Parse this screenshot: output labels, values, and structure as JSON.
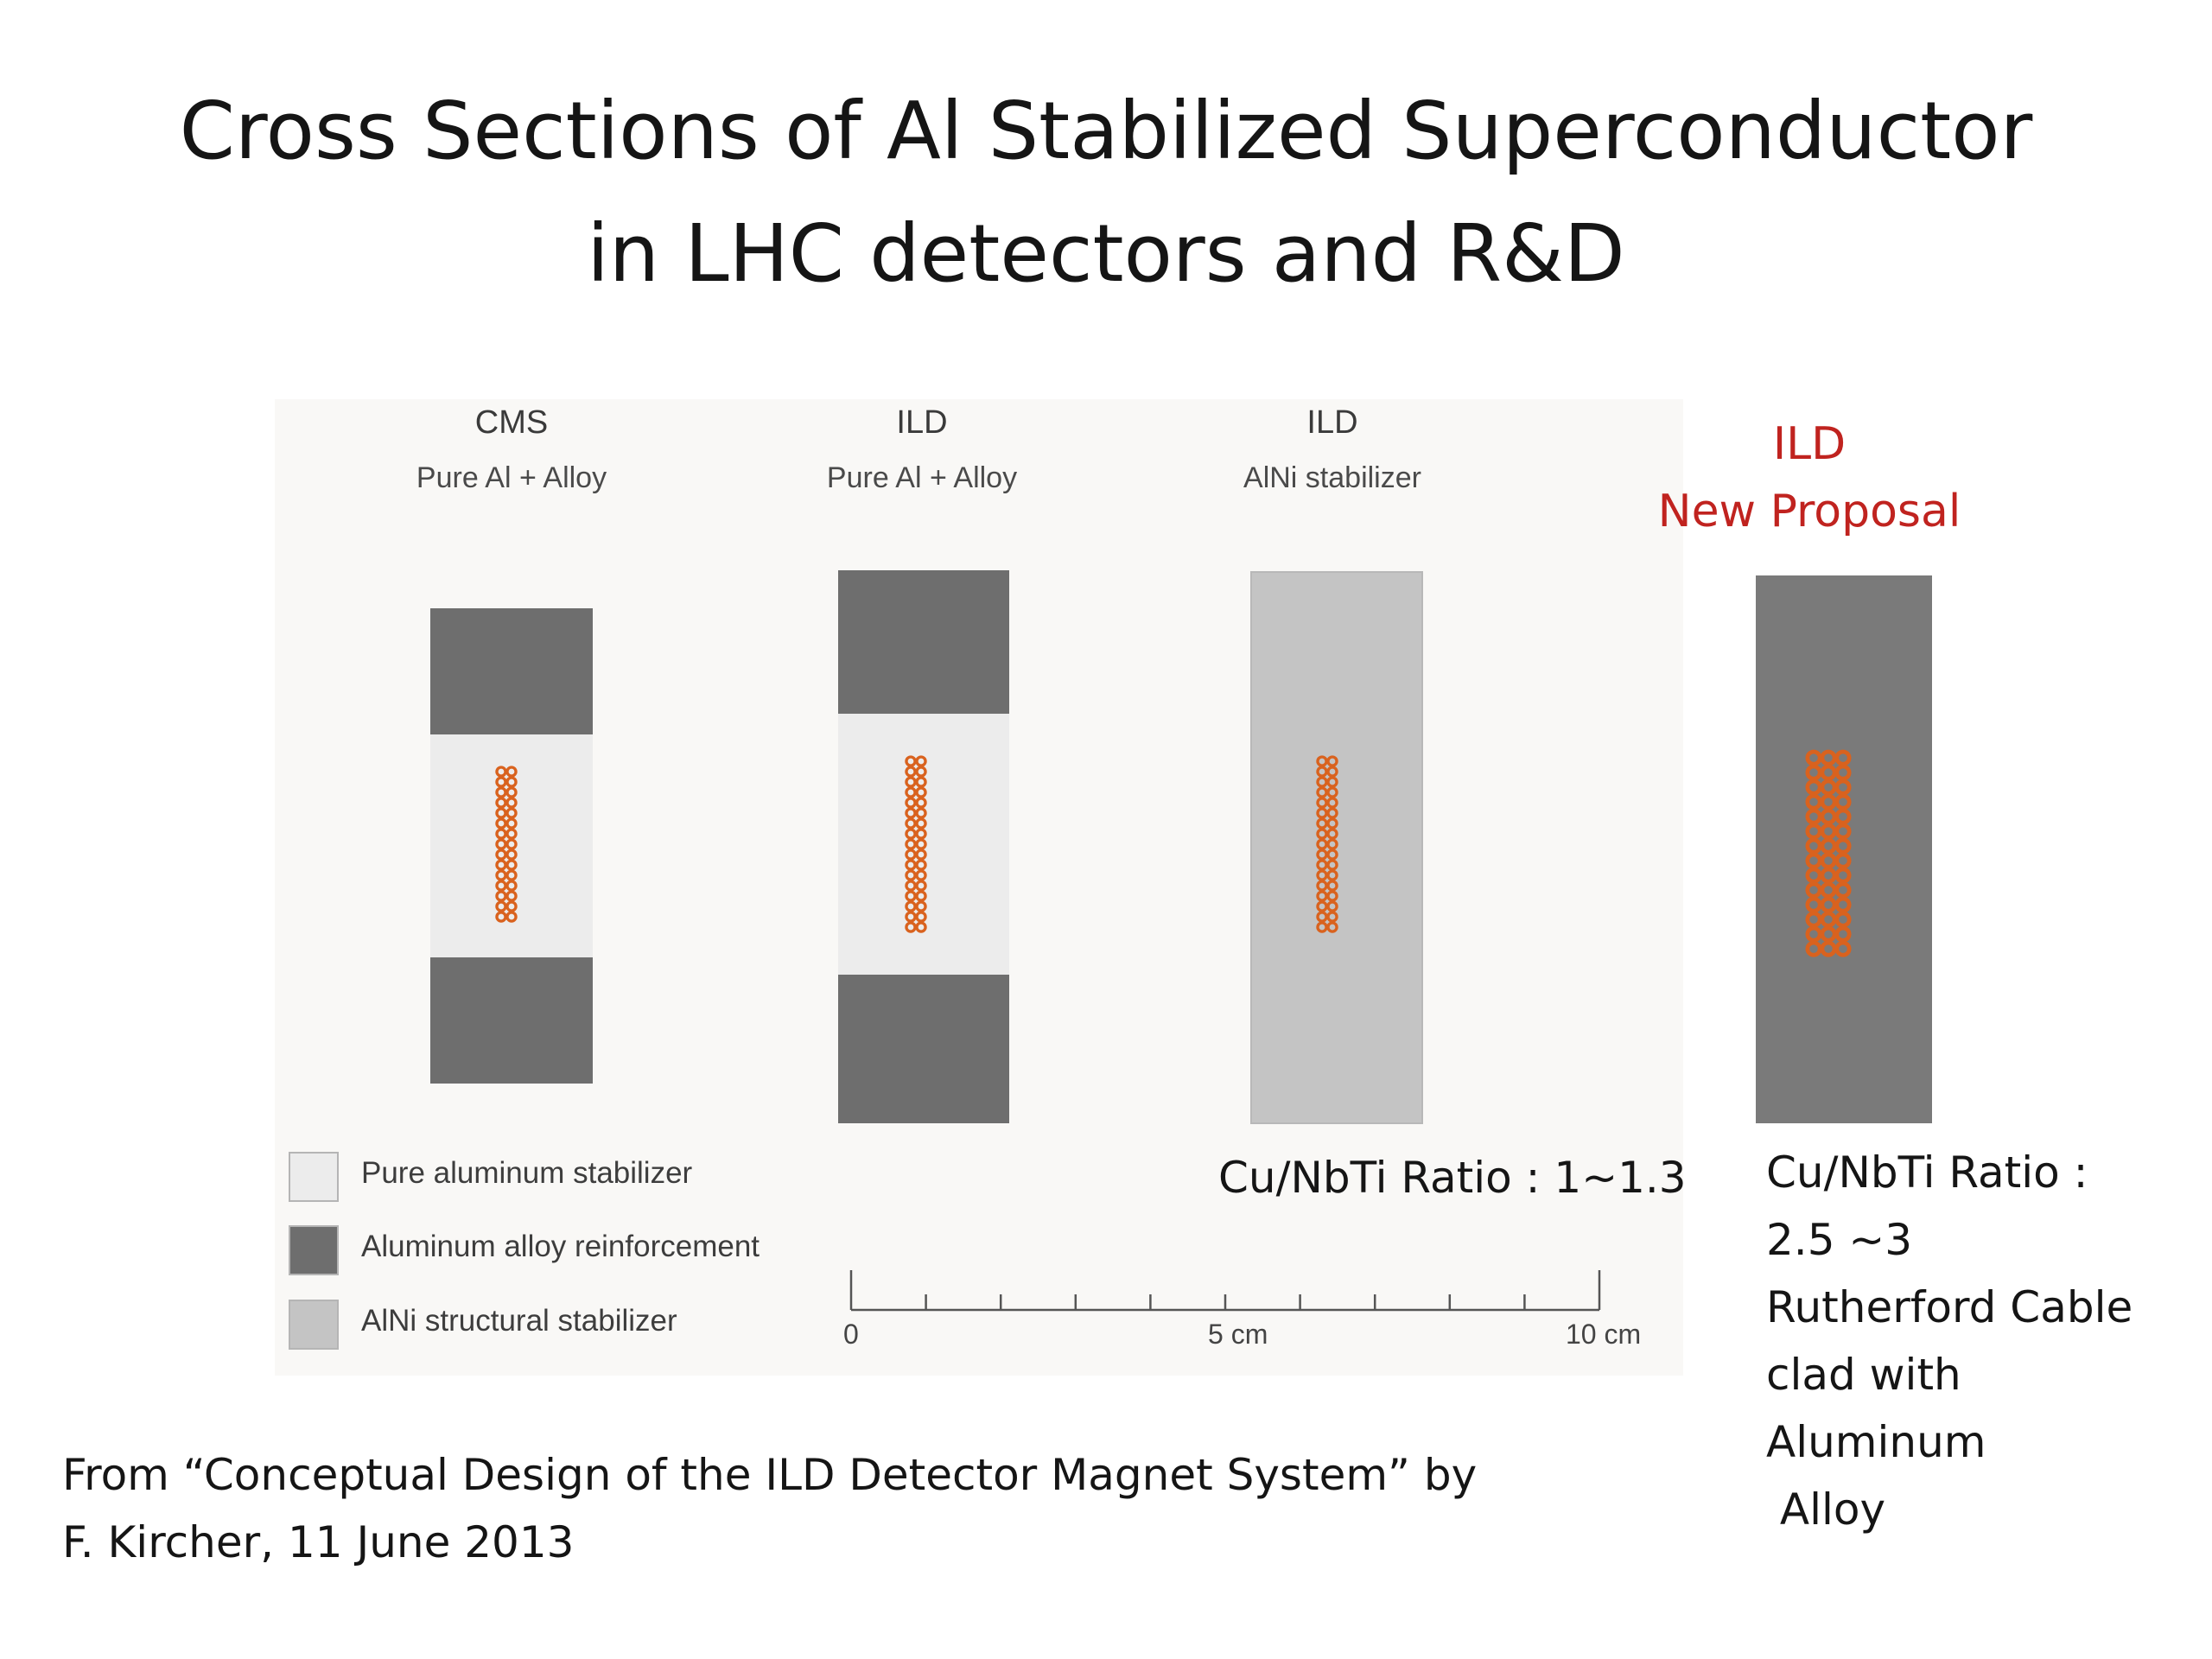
{
  "title": {
    "line1": "Cross Sections of Al Stabilized Superconductor",
    "line2": "in LHC detectors and R&D"
  },
  "columns": [
    {
      "heading": "CMS",
      "subheading": "Pure Al + Alloy"
    },
    {
      "heading": "ILD",
      "subheading": "Pure Al + Alloy"
    },
    {
      "heading": "ILD",
      "subheading": "AlNi stabilizer"
    }
  ],
  "new_proposal": {
    "heading": "ILD",
    "subheading": "New Proposal"
  },
  "legend": [
    {
      "label": "Pure aluminum stabilizer",
      "color": "#ececec"
    },
    {
      "label": "Aluminum alloy reinforcement",
      "color": "#6e6e6e"
    },
    {
      "label": "AlNi structural stabilizer",
      "color": "#c4c4c4"
    }
  ],
  "scale_bar": {
    "start_label": "0",
    "mid_label": "5 cm",
    "end_label": "10 cm"
  },
  "ratio_ild_alni": "Cu/NbTi Ratio : 1~1.3",
  "proposal_notes": [
    "Cu/NbTi Ratio :",
    "2.5 ~3",
    "Rutherford Cable",
    "clad with",
    "Aluminum",
    " Alloy"
  ],
  "source": {
    "line1": "From  “Conceptual Design of the ILD Detector Magnet System” by",
    "line2": "F. Kircher, 11 June 2013"
  },
  "colors": {
    "pure_aluminum": "#ececec",
    "aluminum_alloy": "#6e6e6e",
    "alni": "#c4c4c4",
    "proposal_block": "#7a7a7a",
    "strand": "#d9621e",
    "accent_red": "#c0231f"
  }
}
